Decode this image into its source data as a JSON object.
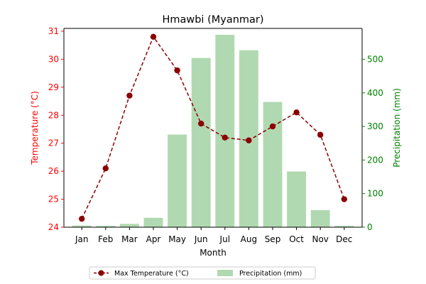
{
  "chart_data": {
    "type": "bar+line",
    "title": "Hmawbi (Myanmar)",
    "xlabel": "Month",
    "ylabel_left": "Temperature (°C)",
    "ylabel_right": "Precipitation (mm)",
    "categories": [
      "Jan",
      "Feb",
      "Mar",
      "Apr",
      "May",
      "Jun",
      "Jul",
      "Aug",
      "Sep",
      "Oct",
      "Nov",
      "Dec"
    ],
    "ylim_left": [
      24,
      31.1
    ],
    "yticks_left": [
      24,
      25,
      26,
      27,
      28,
      29,
      30,
      31
    ],
    "ylim_right": [
      0,
      592
    ],
    "yticks_right": [
      0,
      100,
      200,
      300,
      400,
      500
    ],
    "series": [
      {
        "name": "Max Temperature (°C)",
        "kind": "line",
        "axis": "left",
        "color": "#8b0000",
        "values": [
          24.3,
          26.1,
          28.7,
          30.8,
          29.6,
          27.7,
          27.2,
          27.1,
          27.6,
          28.1,
          27.3,
          25.0
        ]
      },
      {
        "name": "Precipitation (mm)",
        "kind": "bar",
        "axis": "right",
        "color": "#b1d9b1",
        "values": [
          5,
          4,
          10,
          28,
          276,
          504,
          573,
          527,
          373,
          166,
          51,
          4
        ]
      }
    ],
    "left_axis_color": "#ff0000",
    "right_axis_color": "#008000",
    "legend_position": "bottom-center",
    "grid": false
  }
}
